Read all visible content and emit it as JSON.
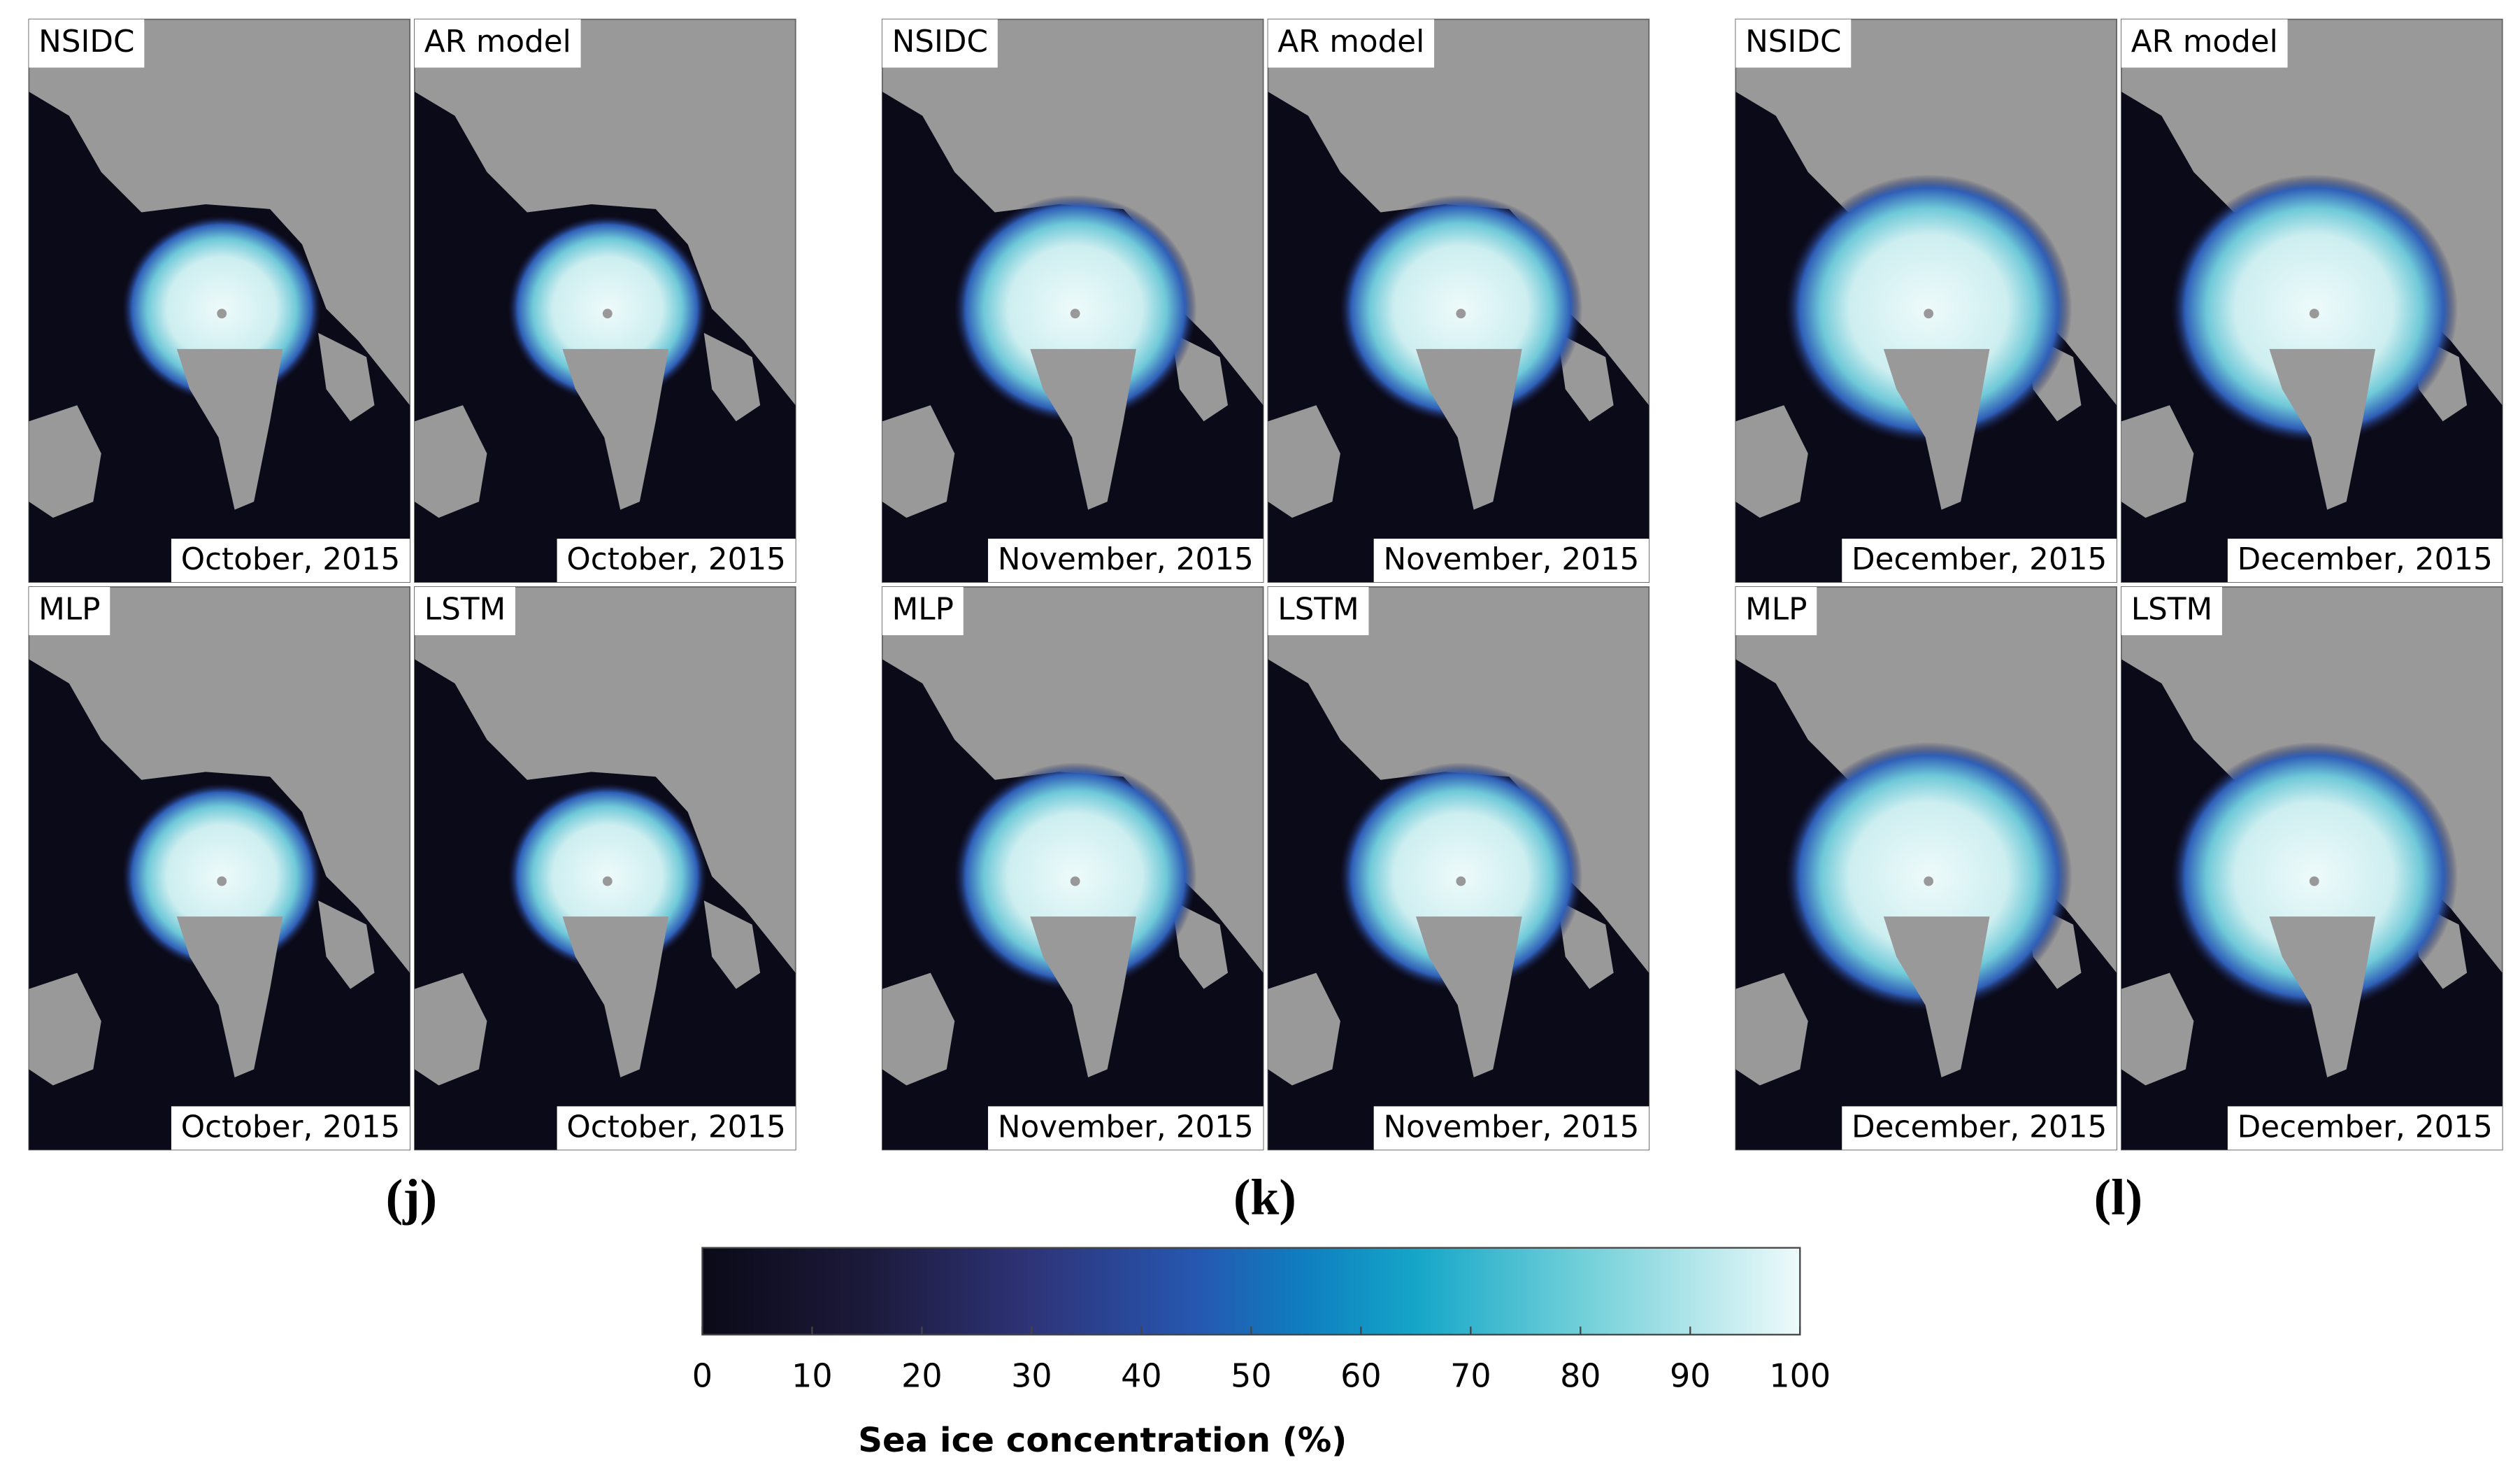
{
  "groups": [
    {
      "label": "(j)",
      "panels": [
        {
          "model": "NSIDC",
          "date": "October, 2015"
        },
        {
          "model": "AR model",
          "date": "October, 2015"
        },
        {
          "model": "MLP",
          "date": "October, 2015"
        },
        {
          "model": "LSTM",
          "date": "October, 2015"
        }
      ]
    },
    {
      "label": "(k)",
      "panels": [
        {
          "model": "NSIDC",
          "date": "November, 2015"
        },
        {
          "model": "AR model",
          "date": "November, 2015"
        },
        {
          "model": "MLP",
          "date": "November, 2015"
        },
        {
          "model": "LSTM",
          "date": "November, 2015"
        }
      ]
    },
    {
      "label": "(l)",
      "panels": [
        {
          "model": "NSIDC",
          "date": "December, 2015"
        },
        {
          "model": "AR model",
          "date": "December, 2015"
        },
        {
          "model": "MLP",
          "date": "December, 2015"
        },
        {
          "model": "LSTM",
          "date": "December, 2015"
        }
      ]
    }
  ],
  "colorbar": {
    "range": [
      0,
      100
    ],
    "ticks": [
      0,
      10,
      20,
      30,
      40,
      50,
      60,
      70,
      80,
      90,
      100
    ],
    "label": "Sea ice concentration (%)"
  }
}
